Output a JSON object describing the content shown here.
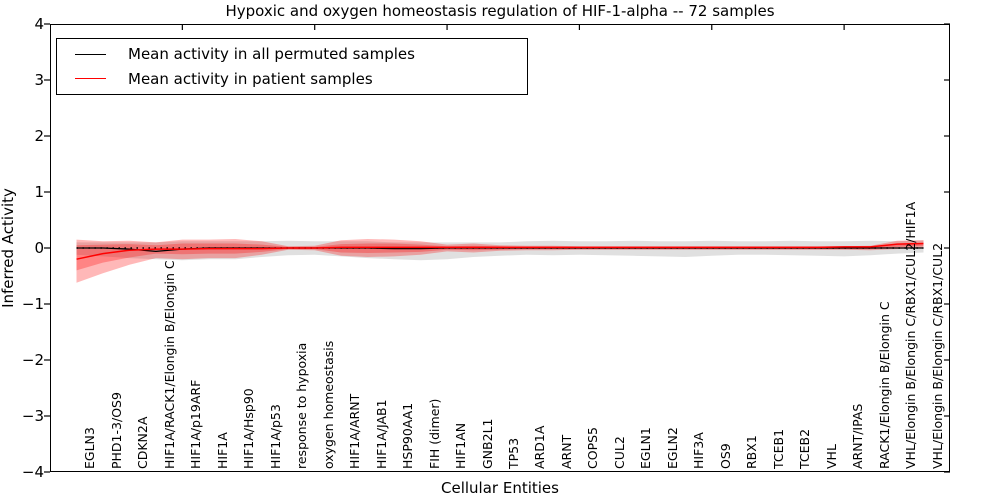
{
  "figure": {
    "title": "Hypoxic and oxygen homeostasis regulation of HIF-1-alpha -- 72 samples",
    "xlabel": "Cellular Entities",
    "ylabel": "Inferred Activity"
  },
  "legend": {
    "items": [
      {
        "label": "Mean activity in all permuted samples",
        "color": "#000000"
      },
      {
        "label": "Mean activity in patient samples",
        "color": "#ff0000"
      }
    ]
  },
  "colors": {
    "patient_line": "#ff0000",
    "permuted_line": "#000000",
    "baseline_dotted": "#000000",
    "patient_band": "rgba(255,0,0,0.28)",
    "permuted_band": "rgba(0,0,0,0.12)",
    "frame": "#000000"
  },
  "chart_data": {
    "type": "line",
    "title": "Hypoxic and oxygen homeostasis regulation of HIF-1-alpha -- 72 samples",
    "xlabel": "Cellular Entities",
    "ylabel": "Inferred Activity",
    "ylim": [
      -4,
      4
    ],
    "ytick_values": [
      4,
      3,
      2,
      1,
      0,
      -1,
      -2,
      -3,
      -4
    ],
    "ytick_labels": [
      "4",
      "3",
      "2",
      "1",
      "0",
      "−1",
      "−2",
      "−3",
      "−4"
    ],
    "x_major_ticks": [
      5,
      10,
      15,
      20,
      25,
      30
    ],
    "legend_position": "upper left",
    "grid": false,
    "categories": [
      "EGLN3",
      "PHD1-3/OS9",
      "CDKN2A",
      "HIF1A/RACK1/Elongin B/Elongin C",
      "HIF1A/p19ARF",
      "HIF1A",
      "HIF1A/Hsp90",
      "HIF1A/p53",
      "response to hypoxia",
      "oxygen homeostasis",
      "HIF1A/ARNT",
      "HIF1A/JAB1",
      "HSP90AA1",
      "FIH (dimer)",
      "HIF1AN",
      "GNB2L1",
      "TP53",
      "ARD1A",
      "ARNT",
      "COPS5",
      "CUL2",
      "EGLN1",
      "EGLN2",
      "HIF3A",
      "OS9",
      "RBX1",
      "TCEB1",
      "TCEB2",
      "VHL",
      "ARNT/IPAS",
      "RACK1/Elongin B/Elongin C",
      "VHL/Elongin B/Elongin C/RBX1/CUL2/HIF1A",
      "VHL/Elongin B/Elongin C/RBX1/CUL2"
    ],
    "series": [
      {
        "name": "Mean activity in all permuted samples",
        "color": "#000000",
        "width": 1.3,
        "values": [
          0,
          0,
          -0.02,
          -0.06,
          -0.02,
          0,
          0,
          0,
          0,
          0,
          0,
          0,
          -0.01,
          -0.01,
          0,
          0,
          0,
          0,
          0,
          0,
          0,
          0,
          0,
          0,
          0,
          0,
          0,
          0,
          0,
          0,
          0,
          0,
          0
        ]
      },
      {
        "name": "Mean activity in patient samples",
        "color": "#ff0000",
        "width": 1.5,
        "values": [
          -0.2,
          -0.1,
          -0.04,
          -0.02,
          -0.02,
          -0.01,
          -0.01,
          -0.01,
          0,
          0,
          0.01,
          0.01,
          0.01,
          0.01,
          0.01,
          0.01,
          0.01,
          0.01,
          0.01,
          0.01,
          0.01,
          0.01,
          0.01,
          0.01,
          0.01,
          0.01,
          0.01,
          0.01,
          0.01,
          0.02,
          0.02,
          0.07,
          0.08
        ]
      }
    ],
    "bands": [
      {
        "name": "permuted-samples-range",
        "color": "rgba(0,0,0,0.12)",
        "upper": [
          0.1,
          0.1,
          0.1,
          0.1,
          0.12,
          0.12,
          0.12,
          0.12,
          0.13,
          0.12,
          0.12,
          0.12,
          0.1,
          0.1,
          0.1,
          0.1,
          0.1,
          0.12,
          0.13,
          0.12,
          0.12,
          0.13,
          0.12,
          0.12,
          0.13,
          0.12,
          0.12,
          0.13,
          0.12,
          0.12,
          0.13,
          0.12,
          0.14
        ],
        "lower": [
          -0.12,
          -0.15,
          -0.18,
          -0.2,
          -0.22,
          -0.2,
          -0.2,
          -0.16,
          -0.13,
          -0.12,
          -0.15,
          -0.18,
          -0.2,
          -0.22,
          -0.2,
          -0.16,
          -0.14,
          -0.12,
          -0.13,
          -0.12,
          -0.13,
          -0.14,
          -0.15,
          -0.16,
          -0.14,
          -0.12,
          -0.12,
          -0.13,
          -0.14,
          -0.15,
          -0.13,
          -0.1,
          -0.08
        ]
      },
      {
        "name": "patient-samples-range-outer",
        "color": "rgba(255,0,0,0.28)",
        "upper": [
          0.15,
          0.12,
          0.13,
          0.1,
          0.15,
          0.15,
          0.16,
          0.12,
          0.03,
          0.04,
          0.14,
          0.16,
          0.15,
          0.12,
          0.06,
          0.08,
          0.05,
          0.04,
          0.04,
          0.03,
          0.03,
          0.03,
          0.03,
          0.03,
          0.03,
          0.03,
          0.03,
          0.03,
          0.03,
          0.03,
          0.04,
          0.13,
          0.14
        ],
        "lower": [
          -0.62,
          -0.45,
          -0.3,
          -0.18,
          -0.2,
          -0.18,
          -0.18,
          -0.12,
          -0.03,
          -0.04,
          -0.14,
          -0.16,
          -0.15,
          -0.12,
          -0.06,
          -0.08,
          -0.05,
          -0.04,
          -0.04,
          -0.03,
          -0.03,
          -0.03,
          -0.03,
          -0.03,
          -0.03,
          -0.03,
          -0.03,
          -0.03,
          -0.03,
          -0.03,
          -0.04,
          -0.02,
          0.01
        ]
      },
      {
        "name": "patient-samples-range-inner",
        "color": "rgba(255,0,0,0.28)",
        "upper": [
          0.05,
          0.06,
          0.07,
          0.05,
          0.08,
          0.08,
          0.08,
          0.06,
          0.02,
          0.02,
          0.07,
          0.08,
          0.08,
          0.06,
          0.03,
          0.04,
          0.03,
          0.02,
          0.02,
          0.02,
          0.02,
          0.02,
          0.02,
          0.02,
          0.02,
          0.02,
          0.02,
          0.02,
          0.02,
          0.02,
          0.02,
          0.07,
          0.08
        ],
        "lower": [
          -0.4,
          -0.26,
          -0.17,
          -0.1,
          -0.11,
          -0.1,
          -0.1,
          -0.07,
          -0.02,
          -0.02,
          -0.08,
          -0.09,
          -0.08,
          -0.07,
          -0.03,
          -0.04,
          -0.03,
          -0.02,
          -0.02,
          -0.02,
          -0.02,
          -0.02,
          -0.02,
          -0.02,
          -0.02,
          -0.02,
          -0.02,
          -0.02,
          -0.02,
          -0.02,
          -0.02,
          0.02,
          0.04
        ]
      }
    ],
    "reference_lines": [
      {
        "y": 0,
        "style": "dotted",
        "color": "#000000",
        "width": 1.4
      }
    ]
  }
}
